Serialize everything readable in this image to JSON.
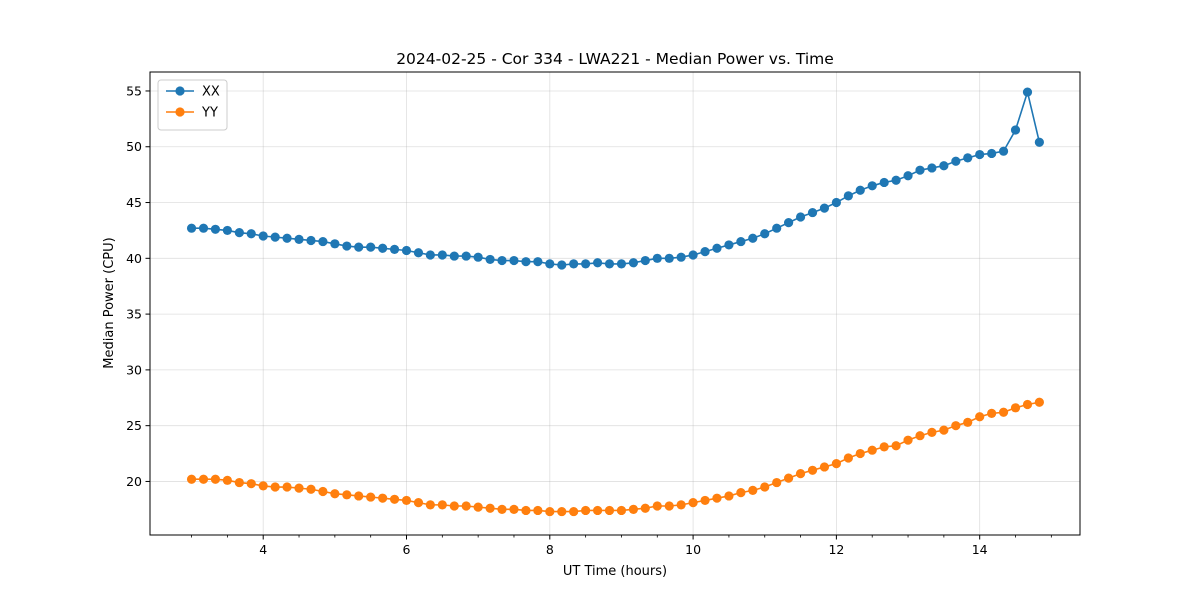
{
  "chart_data": {
    "type": "line",
    "title": "2024-02-25 - Cor 334 - LWA221 - Median Power vs. Time",
    "xlabel": "UT Time (hours)",
    "ylabel": "Median Power (CPU)",
    "xlim": [
      2.42,
      15.4
    ],
    "ylim": [
      15.2,
      56.7
    ],
    "xticks": [
      4,
      6,
      8,
      10,
      12,
      14
    ],
    "yticks": [
      20,
      25,
      30,
      35,
      40,
      45,
      50,
      55
    ],
    "xtick_labels": [
      "4",
      "6",
      "8",
      "10",
      "12",
      "14"
    ],
    "ytick_labels": [
      "20",
      "25",
      "30",
      "35",
      "40",
      "45",
      "50",
      "55"
    ],
    "grid": true,
    "legend_position": "top-left",
    "x": [
      3.0,
      3.167,
      3.333,
      3.5,
      3.667,
      3.833,
      4.0,
      4.167,
      4.333,
      4.5,
      4.667,
      4.833,
      5.0,
      5.167,
      5.333,
      5.5,
      5.667,
      5.833,
      6.0,
      6.167,
      6.333,
      6.5,
      6.667,
      6.833,
      7.0,
      7.167,
      7.333,
      7.5,
      7.667,
      7.833,
      8.0,
      8.167,
      8.333,
      8.5,
      8.667,
      8.833,
      9.0,
      9.167,
      9.333,
      9.5,
      9.667,
      9.833,
      10.0,
      10.167,
      10.333,
      10.5,
      10.667,
      10.833,
      11.0,
      11.167,
      11.333,
      11.5,
      11.667,
      11.833,
      12.0,
      12.167,
      12.333,
      12.5,
      12.667,
      12.833,
      13.0,
      13.167,
      13.333,
      13.5,
      13.667,
      13.833,
      14.0,
      14.167,
      14.333,
      14.5,
      14.667,
      14.833
    ],
    "series": [
      {
        "name": "XX",
        "color": "#1f77b4",
        "values": [
          42.7,
          42.7,
          42.6,
          42.5,
          42.3,
          42.2,
          42.0,
          41.9,
          41.8,
          41.7,
          41.6,
          41.5,
          41.3,
          41.1,
          41.0,
          41.0,
          40.9,
          40.8,
          40.7,
          40.5,
          40.3,
          40.3,
          40.2,
          40.2,
          40.1,
          39.9,
          39.8,
          39.8,
          39.7,
          39.7,
          39.5,
          39.4,
          39.5,
          39.5,
          39.6,
          39.5,
          39.5,
          39.6,
          39.8,
          40.0,
          40.0,
          40.1,
          40.3,
          40.6,
          40.9,
          41.2,
          41.5,
          41.8,
          42.2,
          42.7,
          43.2,
          43.7,
          44.1,
          44.5,
          45.0,
          45.6,
          46.1,
          46.5,
          46.8,
          47.0,
          47.4,
          47.9,
          48.1,
          48.3,
          48.7,
          49.0,
          49.3,
          49.4,
          49.6,
          51.5,
          54.9,
          50.4
        ]
      },
      {
        "name": "YY",
        "color": "#ff7f0e",
        "values": [
          20.2,
          20.2,
          20.2,
          20.1,
          19.9,
          19.8,
          19.6,
          19.5,
          19.5,
          19.4,
          19.3,
          19.1,
          18.9,
          18.8,
          18.7,
          18.6,
          18.5,
          18.4,
          18.3,
          18.1,
          17.9,
          17.9,
          17.8,
          17.8,
          17.7,
          17.6,
          17.5,
          17.5,
          17.4,
          17.4,
          17.3,
          17.3,
          17.3,
          17.4,
          17.4,
          17.4,
          17.4,
          17.5,
          17.6,
          17.8,
          17.8,
          17.9,
          18.1,
          18.3,
          18.5,
          18.7,
          19.0,
          19.2,
          19.5,
          19.9,
          20.3,
          20.7,
          21.0,
          21.3,
          21.6,
          22.1,
          22.5,
          22.8,
          23.1,
          23.2,
          23.7,
          24.1,
          24.4,
          24.6,
          25.0,
          25.3,
          25.8,
          26.1,
          26.2,
          26.6,
          26.9,
          27.1
        ]
      }
    ]
  }
}
